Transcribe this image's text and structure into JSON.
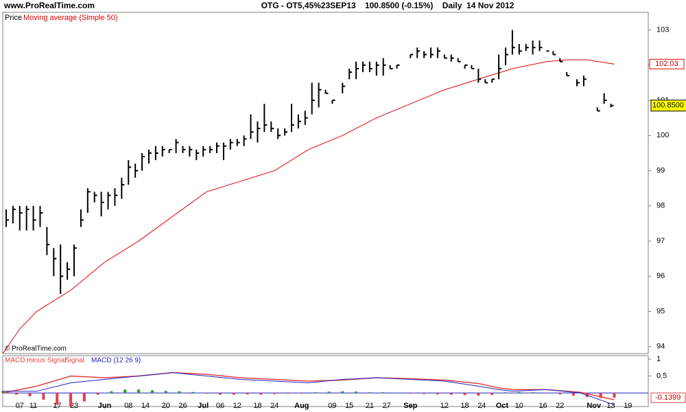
{
  "chart_data": {
    "type": "ohlc",
    "site": "www.ProRealTime.com",
    "title": "OTG - OT5,45%23SEP13    100.8500 (-0.15%)    Daily  14 Nov 2012",
    "copyright": "© ProRealTime.com",
    "price_legend": "Price",
    "xlim": [
      0,
      190
    ],
    "xticks": [
      {
        "value": 5,
        "label": "07"
      },
      {
        "value": 9,
        "label": "11"
      },
      {
        "value": 16,
        "label": "17"
      },
      {
        "value": 21,
        "label": "23"
      },
      {
        "value": 30,
        "label": "Jun"
      },
      {
        "value": 37,
        "label": "08"
      },
      {
        "value": 42,
        "label": "14"
      },
      {
        "value": 48,
        "label": "20"
      },
      {
        "value": 53,
        "label": "26"
      },
      {
        "value": 59,
        "label": "Jul"
      },
      {
        "value": 64,
        "label": "06"
      },
      {
        "value": 69,
        "label": "12"
      },
      {
        "value": 75,
        "label": "18"
      },
      {
        "value": 80,
        "label": "24"
      },
      {
        "value": 88,
        "label": "Aug"
      },
      {
        "value": 97,
        "label": "09"
      },
      {
        "value": 102,
        "label": "15"
      },
      {
        "value": 108,
        "label": "21"
      },
      {
        "value": 113,
        "label": "27"
      },
      {
        "value": 120,
        "label": "Sep"
      },
      {
        "value": 130,
        "label": "12"
      },
      {
        "value": 136,
        "label": "18"
      },
      {
        "value": 141,
        "label": "24"
      },
      {
        "value": 147,
        "label": "Oct"
      },
      {
        "value": 152,
        "label": "10"
      },
      {
        "value": 159,
        "label": "16"
      },
      {
        "value": 164,
        "label": "22"
      },
      {
        "value": 174,
        "label": "Nov"
      },
      {
        "value": 179,
        "label": "13"
      },
      {
        "value": 184,
        "label": "19"
      }
    ],
    "ylim": [
      93.8,
      103.5
    ],
    "yticks": [
      94,
      95,
      96,
      97,
      98,
      99,
      100,
      101,
      102,
      103
    ],
    "price": {
      "color": "#000000",
      "x": [
        1,
        3,
        5,
        7,
        9,
        11,
        13,
        15,
        17,
        19,
        21,
        23,
        25,
        27,
        29,
        31,
        33,
        35,
        37,
        39,
        41,
        43,
        45,
        47,
        49,
        51,
        53,
        55,
        57,
        59,
        61,
        63,
        65,
        67,
        69,
        71,
        73,
        75,
        77,
        79,
        81,
        83,
        85,
        87,
        89,
        91,
        93,
        95,
        97,
        100,
        102,
        104,
        106,
        108,
        110,
        112,
        114,
        116,
        120,
        122,
        124,
        126,
        128,
        130,
        132,
        134,
        136,
        138,
        140,
        142,
        144,
        146,
        148,
        150,
        152,
        154,
        156,
        158,
        160,
        162,
        164,
        166,
        169,
        171,
        175,
        177,
        179
      ],
      "high": [
        97.9,
        98.0,
        98.0,
        98.0,
        98.0,
        98.0,
        97.4,
        96.8,
        96.9,
        96.4,
        96.9,
        97.9,
        98.5,
        98.4,
        98.4,
        98.4,
        98.5,
        98.8,
        99.3,
        99.2,
        99.5,
        99.6,
        99.7,
        99.7,
        99.6,
        99.9,
        99.7,
        99.7,
        99.6,
        99.7,
        99.7,
        99.8,
        99.8,
        99.9,
        99.9,
        100.0,
        100.6,
        100.4,
        100.9,
        100.4,
        100.2,
        100.2,
        100.9,
        100.6,
        100.7,
        101.5,
        101.5,
        101.3,
        101.0,
        101.5,
        101.9,
        102.1,
        102.1,
        102.1,
        102.1,
        102.2,
        102.0,
        102.0,
        102.3,
        102.5,
        102.4,
        102.5,
        102.5,
        102.3,
        102.3,
        102.2,
        102.0,
        102.0,
        101.9,
        101.6,
        101.6,
        102.3,
        102.5,
        103.0,
        102.6,
        102.6,
        102.7,
        102.7,
        102.4,
        102.4,
        102.2,
        101.8,
        101.6,
        101.7,
        100.8,
        101.2,
        100.9
      ],
      "low": [
        97.4,
        97.5,
        97.3,
        97.3,
        97.3,
        97.4,
        96.6,
        96.0,
        95.5,
        95.9,
        96.0,
        97.4,
        97.8,
        98.1,
        97.7,
        97.9,
        98.0,
        98.2,
        98.6,
        98.8,
        99.0,
        99.2,
        99.3,
        99.4,
        99.5,
        99.5,
        99.5,
        99.4,
        99.3,
        99.4,
        99.5,
        99.5,
        99.3,
        99.6,
        99.7,
        99.7,
        99.9,
        99.8,
        100.1,
        100.1,
        99.9,
        100.0,
        100.1,
        100.2,
        100.3,
        100.6,
        100.8,
        101.2,
        100.9,
        101.2,
        101.6,
        101.6,
        101.8,
        101.8,
        101.7,
        101.7,
        101.9,
        101.9,
        102.2,
        102.2,
        102.2,
        102.2,
        102.2,
        102.2,
        102.1,
        102.1,
        101.9,
        101.9,
        101.5,
        101.5,
        101.5,
        101.6,
        102.0,
        102.3,
        102.3,
        102.4,
        102.3,
        102.4,
        102.4,
        102.3,
        102.1,
        101.7,
        101.4,
        101.4,
        100.7,
        100.9,
        100.8
      ],
      "close": [
        97.6,
        97.9,
        97.8,
        97.9,
        97.6,
        97.8,
        96.9,
        96.5,
        96.0,
        96.2,
        96.8,
        97.6,
        98.4,
        98.3,
        98.1,
        98.3,
        98.3,
        98.6,
        99.1,
        99.0,
        99.4,
        99.5,
        99.5,
        99.6,
        99.6,
        99.8,
        99.6,
        99.6,
        99.5,
        99.6,
        99.6,
        99.7,
        99.7,
        99.8,
        99.8,
        99.9,
        100.1,
        100.2,
        100.3,
        100.2,
        100.0,
        100.1,
        100.3,
        100.4,
        100.5,
        101.0,
        101.3,
        101.2,
        101.0,
        101.4,
        101.8,
        101.9,
        102.0,
        101.9,
        102.0,
        102.0,
        101.9,
        102.0,
        102.3,
        102.4,
        102.3,
        102.3,
        102.4,
        102.2,
        102.2,
        102.1,
        102.0,
        101.9,
        101.6,
        101.5,
        101.6,
        101.9,
        102.3,
        102.5,
        102.4,
        102.5,
        102.5,
        102.5,
        102.4,
        102.3,
        102.1,
        101.7,
        101.5,
        101.6,
        100.7,
        101.0,
        100.85
      ],
      "value_label": "100.8500"
    },
    "ma": {
      "name": "Moving average (Simple 50)",
      "color": "#e00000",
      "x": [
        0,
        5,
        10,
        20,
        30,
        40,
        50,
        60,
        70,
        80,
        90,
        100,
        110,
        120,
        130,
        140,
        150,
        160,
        166,
        172,
        180
      ],
      "values": [
        93.8,
        94.5,
        95.0,
        95.6,
        96.4,
        97.0,
        97.7,
        98.4,
        98.7,
        99.0,
        99.6,
        100.0,
        100.5,
        100.9,
        101.3,
        101.6,
        101.9,
        102.1,
        102.15,
        102.15,
        102.03
      ],
      "value_label": "102.03"
    },
    "macd": {
      "ylim": [
        -0.4,
        1.1
      ],
      "yticks": [
        1,
        0.5
      ],
      "legend": [
        "MACD minus Signal",
        "Signal",
        "MACD (12 26 9)"
      ],
      "line_x": [
        0,
        10,
        20,
        30,
        40,
        50,
        60,
        70,
        80,
        90,
        100,
        110,
        120,
        130,
        140,
        146,
        150,
        160,
        170,
        180
      ],
      "macd_color": "#2020c0",
      "macd": [
        0.05,
        0.05,
        0.3,
        0.4,
        0.5,
        0.6,
        0.5,
        0.4,
        0.35,
        0.3,
        0.4,
        0.45,
        0.4,
        0.35,
        0.2,
        0.1,
        0.05,
        0.1,
        0.0,
        -0.35
      ],
      "signal_color": "#e04040",
      "signal": [
        0.0,
        0.2,
        0.5,
        0.45,
        0.5,
        0.6,
        0.55,
        0.45,
        0.4,
        0.35,
        0.38,
        0.45,
        0.42,
        0.38,
        0.28,
        0.15,
        0.1,
        0.1,
        0.02,
        -0.2
      ],
      "hist_x": [
        0,
        4,
        8,
        12,
        16,
        20,
        24,
        28,
        32,
        36,
        40,
        44,
        48,
        52,
        56,
        60,
        64,
        68,
        72,
        76,
        80,
        84,
        88,
        92,
        96,
        100,
        104,
        108,
        112,
        116,
        120,
        124,
        128,
        132,
        136,
        140,
        144,
        148,
        152,
        156,
        160,
        164,
        168,
        172,
        176,
        180
      ],
      "hist": [
        0.05,
        -0.05,
        -0.1,
        -0.2,
        -0.35,
        -0.4,
        -0.25,
        -0.05,
        0.05,
        0.1,
        0.1,
        0.08,
        0.06,
        0.05,
        0.03,
        -0.02,
        -0.05,
        -0.05,
        -0.04,
        -0.05,
        -0.03,
        -0.02,
        -0.02,
        0.02,
        0.04,
        0.05,
        0.04,
        0.02,
        0.02,
        0.0,
        -0.02,
        -0.03,
        -0.04,
        -0.05,
        -0.06,
        -0.08,
        -0.06,
        0.02,
        0.03,
        0.02,
        0.0,
        -0.04,
        -0.08,
        -0.12,
        -0.15,
        -0.1399
      ],
      "pos_color": "#20a020",
      "neg_color": "#e04050",
      "value_label": "-0.1399"
    }
  }
}
